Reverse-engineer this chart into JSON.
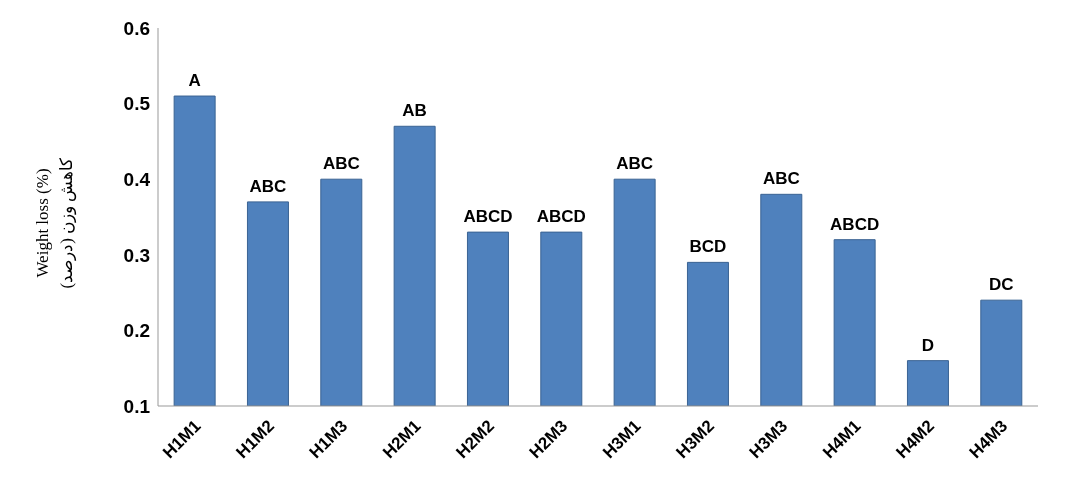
{
  "chart_data": {
    "type": "bar",
    "ylabel": "Weight loss (%)\nکاهش وزن (درصد)",
    "categories": [
      "H1M1",
      "H1M2",
      "H1M3",
      "H2M1",
      "H2M2",
      "H2M3",
      "H3M1",
      "H3M2",
      "H3M3",
      "H4M1",
      "H4M2",
      "H4M3"
    ],
    "values": [
      0.51,
      0.37,
      0.4,
      0.47,
      0.33,
      0.33,
      0.4,
      0.29,
      0.38,
      0.32,
      0.16,
      0.24
    ],
    "value_labels": [
      "A",
      "ABC",
      "ABC",
      "AB",
      "ABCD",
      "ABCD",
      "ABC",
      "BCD",
      "ABC",
      "ABCD",
      "D",
      "DC"
    ],
    "color": "#4f81bd",
    "ylim": [
      0.1,
      0.6
    ],
    "yticks": [
      0.1,
      0.2,
      0.3,
      0.4,
      0.5,
      0.6
    ],
    "grid": false
  }
}
